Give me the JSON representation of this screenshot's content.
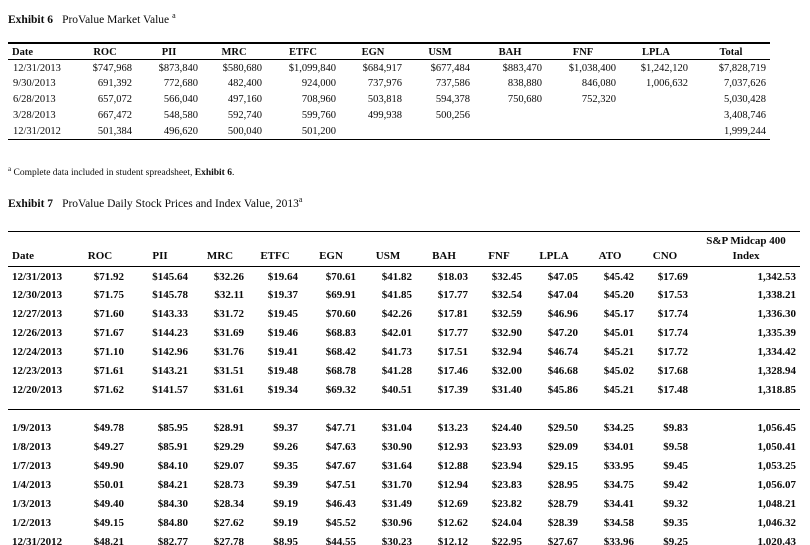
{
  "exhibit6": {
    "label": "Exhibit 6",
    "title": "ProValue Market Value",
    "superscript": "a",
    "table": {
      "headers": [
        "Date",
        "ROC",
        "PII",
        "MRC",
        "ETFC",
        "EGN",
        "USM",
        "BAH",
        "FNF",
        "LPLA",
        "Total"
      ],
      "blocks": [
        [
          [
            "12/31/2013",
            "$747,968",
            "$873,840",
            "$580,680",
            "$1,099,840",
            "$684,917",
            "$677,484",
            "$883,470",
            "$1,038,400",
            "$1,242,120",
            "$7,828,719"
          ],
          [
            "9/30/2013",
            "691,392",
            "772,680",
            "482,400",
            "924,000",
            "737,976",
            "737,586",
            "838,880",
            "846,080",
            "1,006,632",
            "7,037,626"
          ],
          [
            "6/28/2013",
            "657,072",
            "566,040",
            "497,160",
            "708,960",
            "503,818",
            "594,378",
            "750,680",
            "752,320",
            "",
            "5,030,428"
          ],
          [
            "3/28/2013",
            "667,472",
            "548,580",
            "592,740",
            "599,760",
            "499,938",
            "500,256",
            "",
            "",
            "",
            "3,408,746"
          ],
          [
            "12/31/2012",
            "501,384",
            "496,620",
            "500,040",
            "501,200",
            "",
            "",
            "",
            "",
            "",
            "1,999,244"
          ]
        ]
      ]
    },
    "footnote": {
      "superscript": "a",
      "text": "Complete data included in student spreadsheet,",
      "bold_ref": "Exhibit 6",
      "suffix": "."
    }
  },
  "exhibit7": {
    "label": "Exhibit 7",
    "title": "ProValue Daily Stock Prices and Index Value, 2013",
    "superscript": "a",
    "table": {
      "headers": [
        "Date",
        "ROC",
        "PII",
        "MRC",
        "ETFC",
        "EGN",
        "USM",
        "BAH",
        "FNF",
        "LPLA",
        "ATO",
        "CNO",
        "S&P Midcap 400\nIndex"
      ],
      "blocks": [
        [
          [
            "12/31/2013",
            "$71.92",
            "$145.64",
            "$32.26",
            "$19.64",
            "$70.61",
            "$41.82",
            "$18.03",
            "$32.45",
            "$47.05",
            "$45.42",
            "$17.69",
            "1,342.53"
          ],
          [
            "12/30/2013",
            "$71.75",
            "$145.78",
            "$32.11",
            "$19.37",
            "$69.91",
            "$41.85",
            "$17.77",
            "$32.54",
            "$47.04",
            "$45.20",
            "$17.53",
            "1,338.21"
          ],
          [
            "12/27/2013",
            "$71.60",
            "$143.33",
            "$31.72",
            "$19.45",
            "$70.60",
            "$42.26",
            "$17.81",
            "$32.59",
            "$46.96",
            "$45.17",
            "$17.74",
            "1,336.30"
          ],
          [
            "12/26/2013",
            "$71.67",
            "$144.23",
            "$31.69",
            "$19.46",
            "$68.83",
            "$42.01",
            "$17.77",
            "$32.90",
            "$47.20",
            "$45.01",
            "$17.74",
            "1,335.39"
          ],
          [
            "12/24/2013",
            "$71.10",
            "$142.96",
            "$31.76",
            "$19.41",
            "$68.42",
            "$41.73",
            "$17.51",
            "$32.94",
            "$46.74",
            "$45.21",
            "$17.72",
            "1,334.42"
          ],
          [
            "12/23/2013",
            "$71.61",
            "$143.21",
            "$31.51",
            "$19.48",
            "$68.78",
            "$41.28",
            "$17.46",
            "$32.00",
            "$46.68",
            "$45.02",
            "$17.68",
            "1,328.94"
          ],
          [
            "12/20/2013",
            "$71.62",
            "$141.57",
            "$31.61",
            "$19.34",
            "$69.32",
            "$40.51",
            "$17.39",
            "$31.40",
            "$45.86",
            "$45.21",
            "$17.48",
            "1,318.85"
          ]
        ],
        [
          [
            "1/9/2013",
            "$49.78",
            "$85.95",
            "$28.91",
            "$9.37",
            "$47.71",
            "$31.04",
            "$13.23",
            "$24.40",
            "$29.50",
            "$34.25",
            "$9.83",
            "1,056.45"
          ],
          [
            "1/8/2013",
            "$49.27",
            "$85.91",
            "$29.29",
            "$9.26",
            "$47.63",
            "$30.90",
            "$12.93",
            "$23.93",
            "$29.09",
            "$34.01",
            "$9.58",
            "1,050.41"
          ],
          [
            "1/7/2013",
            "$49.90",
            "$84.10",
            "$29.07",
            "$9.35",
            "$47.67",
            "$31.64",
            "$12.88",
            "$23.94",
            "$29.15",
            "$33.95",
            "$9.45",
            "1,053.25"
          ],
          [
            "1/4/2013",
            "$50.01",
            "$84.21",
            "$28.73",
            "$9.39",
            "$47.51",
            "$31.70",
            "$12.94",
            "$23.83",
            "$28.95",
            "$34.75",
            "$9.42",
            "1,056.07"
          ],
          [
            "1/3/2013",
            "$49.40",
            "$84.30",
            "$28.34",
            "$9.19",
            "$46.43",
            "$31.49",
            "$12.69",
            "$23.82",
            "$28.79",
            "$34.41",
            "$9.32",
            "1,048.21"
          ],
          [
            "1/2/2013",
            "$49.15",
            "$84.80",
            "$27.62",
            "$9.19",
            "$45.52",
            "$30.96",
            "$12.62",
            "$24.04",
            "$28.39",
            "$34.58",
            "$9.35",
            "1,046.32"
          ],
          [
            "12/31/2012",
            "$48.21",
            "$82.77",
            "$27.78",
            "$8.95",
            "$44.55",
            "$30.23",
            "$12.12",
            "$22.95",
            "$27.67",
            "$33.96",
            "$9.25",
            "1,020.43"
          ]
        ]
      ]
    }
  }
}
